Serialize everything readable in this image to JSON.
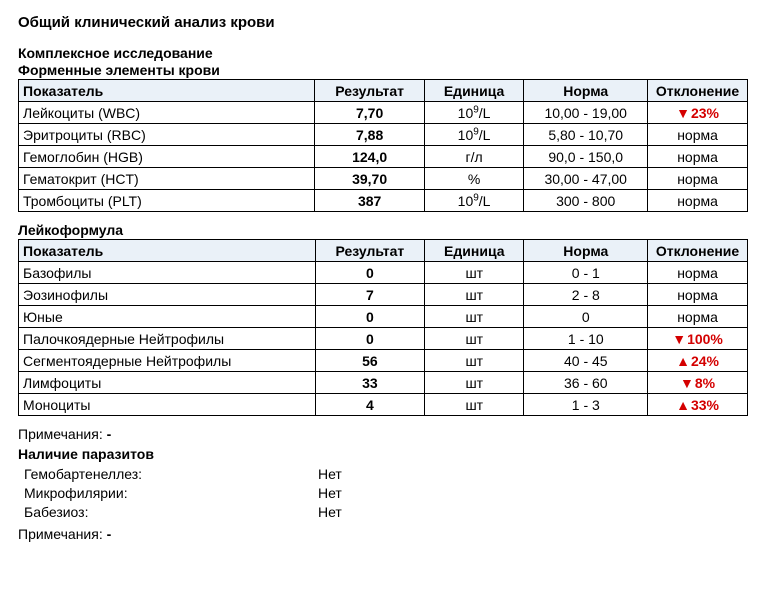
{
  "title": "Общий клинический анализ крови",
  "section1_title": "Комплексное исследование",
  "section1_subtitle": "Форменные элементы крови",
  "headers": {
    "param": "Показатель",
    "result": "Результат",
    "unit": "Единица",
    "norm": "Норма",
    "deviation": "Отклонение"
  },
  "table1": [
    {
      "param": "Лейкоциты (WBC)",
      "result": "7,70",
      "unit_html": "10<sup>9</sup>/L",
      "norm": "10,00 - 19,00",
      "dev_type": "down",
      "dev": "23%"
    },
    {
      "param": "Эритроциты (RBC)",
      "result": "7,88",
      "unit_html": "10<sup>9</sup>/L",
      "norm": "5,80 - 10,70",
      "dev_type": "normal",
      "dev": "норма"
    },
    {
      "param": "Гемоглобин (HGB)",
      "result": "124,0",
      "unit_html": "г/л",
      "norm": "90,0 - 150,0",
      "dev_type": "normal",
      "dev": "норма"
    },
    {
      "param": "Гематокрит (HCT)",
      "result": "39,70",
      "unit_html": "%",
      "norm": "30,00 - 47,00",
      "dev_type": "normal",
      "dev": "норма"
    },
    {
      "param": "Тромбоциты (PLT)",
      "result": "387",
      "unit_html": "10<sup>9</sup>/L",
      "norm": "300 - 800",
      "dev_type": "normal",
      "dev": "норма"
    }
  ],
  "section2_title": "Лейкоформула",
  "table2": [
    {
      "param": "Базофилы",
      "result": "0",
      "unit_html": "шт",
      "norm": "0 - 1",
      "dev_type": "normal",
      "dev": "норма"
    },
    {
      "param": "Эозинофилы",
      "result": "7",
      "unit_html": "шт",
      "norm": "2 - 8",
      "dev_type": "normal",
      "dev": "норма"
    },
    {
      "param": "Юные",
      "result": "0",
      "unit_html": "шт",
      "norm": "0",
      "dev_type": "normal",
      "dev": "норма"
    },
    {
      "param": "Палочкоядерные Нейтрофилы",
      "result": "0",
      "unit_html": "шт",
      "norm": "1 - 10",
      "dev_type": "down",
      "dev": "100%"
    },
    {
      "param": "Сегментоядерные Нейтрофилы",
      "result": "56",
      "unit_html": "шт",
      "norm": "40 - 45",
      "dev_type": "up",
      "dev": "24%"
    },
    {
      "param": "Лимфоциты",
      "result": "33",
      "unit_html": "шт",
      "norm": "36 - 60",
      "dev_type": "down",
      "dev": "8%"
    },
    {
      "param": "Моноциты",
      "result": "4",
      "unit_html": "шт",
      "norm": "1 - 3",
      "dev_type": "up",
      "dev": "33%"
    }
  ],
  "notes_label": "Примечания:",
  "notes_value": "-",
  "parasites_title": "Наличие паразитов",
  "parasites": [
    {
      "label": "Гемобартенеллез:",
      "value": "Нет"
    },
    {
      "label": "Микрофилярии:",
      "value": "Нет"
    },
    {
      "label": "Бабезиоз:",
      "value": "Нет"
    }
  ]
}
